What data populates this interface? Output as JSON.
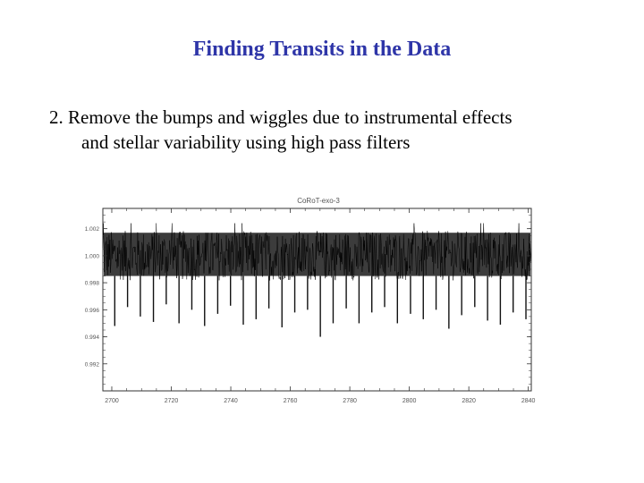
{
  "slide": {
    "title": "Finding Transits in the Data",
    "body_line1": "2.  Remove the bumps and wiggles due to instrumental effects",
    "body_line2": "and stellar variability using high pass filters"
  },
  "colors": {
    "title": "#2e35a8",
    "text": "#000000",
    "data": "#111111",
    "axis": "#333333"
  },
  "chart_data": {
    "type": "line",
    "title": "CoRoT-exo-3",
    "xlabel": "",
    "ylabel": "",
    "xlim": [
      2697,
      2841
    ],
    "ylim": [
      0.99,
      1.0035
    ],
    "x_ticks": [
      2700,
      2720,
      2740,
      2760,
      2780,
      2800,
      2820,
      2840
    ],
    "y_ticks": [
      0.992,
      0.994,
      0.996,
      0.998,
      1.0,
      1.002
    ],
    "y_tick_labels": [
      "0.992",
      "0.994",
      "0.996",
      "0.998",
      "1.000",
      "1.002"
    ],
    "grid": false,
    "series": [
      {
        "baseline": 1.0,
        "noise_band": [
          0.9985,
          1.0017
        ],
        "transit_times": [
          2701.0,
          2705.3,
          2709.6,
          2714.0,
          2718.3,
          2722.6,
          2726.9,
          2731.2,
          2735.6,
          2739.9,
          2744.2,
          2748.5,
          2752.8,
          2757.2,
          2761.5,
          2765.8,
          2770.1,
          2774.4,
          2778.8,
          2783.1,
          2787.4,
          2791.7,
          2796.0,
          2800.4,
          2804.7,
          2809.0,
          2813.3,
          2817.6,
          2822.0,
          2826.3,
          2830.6,
          2834.9,
          2839.2
        ],
        "transit_depth_min": [
          0.9948,
          0.9962,
          0.9955,
          0.9951,
          0.9964,
          0.995,
          0.996,
          0.9948,
          0.9957,
          0.9963,
          0.9949,
          0.9953,
          0.9961,
          0.9947,
          0.9958,
          0.996,
          0.994,
          0.995,
          0.9961,
          0.995,
          0.9958,
          0.9962,
          0.995,
          0.9957,
          0.9953,
          0.996,
          0.9946,
          0.9956,
          0.9962,
          0.9952,
          0.9949,
          0.9958,
          0.9953
        ]
      }
    ]
  }
}
